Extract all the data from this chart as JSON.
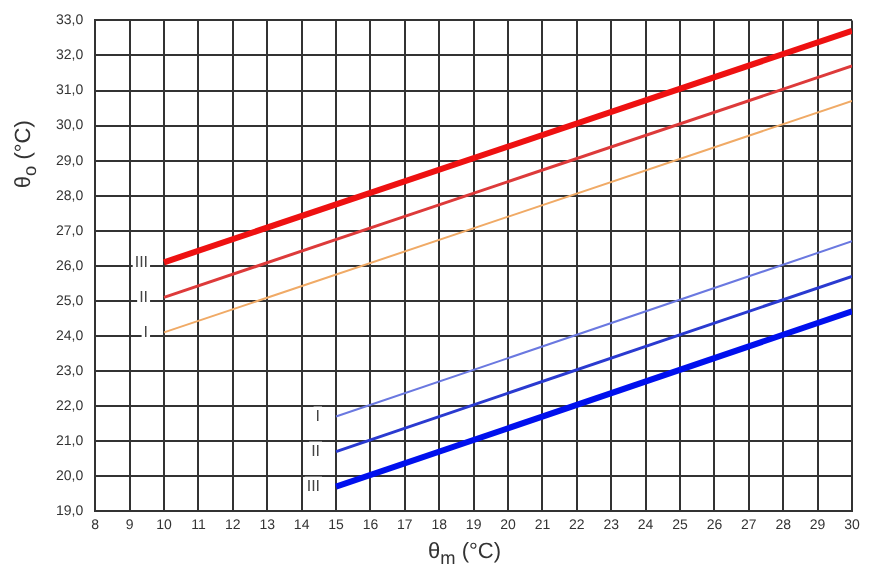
{
  "chart_data": {
    "type": "line",
    "xlabel": "θ$_{m}$ (°C)",
    "ylabel": "θ$_{o}$ (°C)",
    "xlim": [
      8,
      30
    ],
    "xticks": [
      8,
      9,
      10,
      11,
      12,
      13,
      14,
      15,
      16,
      17,
      18,
      19,
      20,
      21,
      22,
      23,
      24,
      25,
      26,
      27,
      28,
      29,
      30
    ],
    "ylim": [
      19,
      33
    ],
    "yticks": [
      {
        "value": 19,
        "label": "19,0"
      },
      {
        "value": 20,
        "label": "20,0"
      },
      {
        "value": 21,
        "label": "21,0"
      },
      {
        "value": 22,
        "label": "22,0"
      },
      {
        "value": 23,
        "label": "23,0"
      },
      {
        "value": 24,
        "label": "24,0"
      },
      {
        "value": 25,
        "label": "25,0"
      },
      {
        "value": 26,
        "label": "26,0"
      },
      {
        "value": 27,
        "label": "27,0"
      },
      {
        "value": 28,
        "label": "28,0"
      },
      {
        "value": 29,
        "label": "29,0"
      },
      {
        "value": 30,
        "label": "30,0"
      },
      {
        "value": 31,
        "label": "31,0"
      },
      {
        "value": 32,
        "label": "32,0"
      },
      {
        "value": 33,
        "label": "33,0"
      }
    ],
    "grid": true,
    "legend": false,
    "marker": "none",
    "line_style": "solid",
    "series": [
      {
        "name": "III",
        "color": "#ee1111",
        "x": [
          10,
          30
        ],
        "values": [
          26.1,
          32.7
        ]
      },
      {
        "name": "II",
        "color": "#dd3a3a",
        "x": [
          10,
          30
        ],
        "values": [
          25.1,
          31.7
        ]
      },
      {
        "name": "I",
        "color": "#f0aa66",
        "x": [
          10,
          30
        ],
        "values": [
          24.1,
          30.7
        ]
      },
      {
        "name": "I",
        "color": "#6a78e0",
        "x": [
          15,
          30
        ],
        "values": [
          21.7,
          26.7
        ]
      },
      {
        "name": "II",
        "color": "#2a3ad0",
        "x": [
          15,
          30
        ],
        "values": [
          20.7,
          25.7
        ]
      },
      {
        "name": "III",
        "color": "#0010ee",
        "x": [
          15,
          30
        ],
        "values": [
          19.7,
          24.7
        ]
      }
    ]
  }
}
